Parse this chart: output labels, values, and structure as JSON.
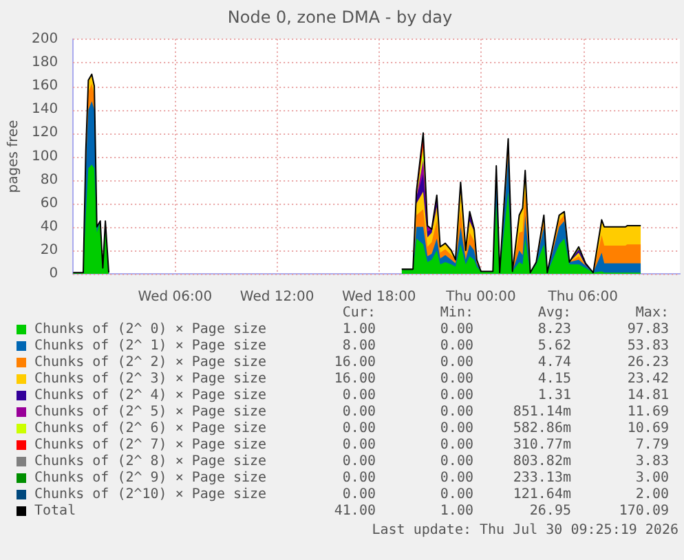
{
  "chart_data": {
    "type": "area",
    "title": "Node 0, zone DMA - by day",
    "ylabel": "pages free",
    "stacked": true,
    "grid": true,
    "legend": "bottom",
    "xlim": [
      "2026-07-29T00:00",
      "2026-07-30T11:42"
    ],
    "xticks": [
      {
        "value": "2026-07-29T06:00",
        "label": "Wed 06:00"
      },
      {
        "value": "2026-07-29T12:00",
        "label": "Wed 12:00"
      },
      {
        "value": "2026-07-29T18:00",
        "label": "Wed 18:00"
      },
      {
        "value": "2026-07-30T00:00",
        "label": "Thu 00:00"
      },
      {
        "value": "2026-07-30T06:00",
        "label": "Thu 06:00"
      }
    ],
    "ylim": [
      0,
      200
    ],
    "yticks": [
      0,
      20,
      40,
      60,
      80,
      100,
      120,
      140,
      160,
      180,
      200
    ],
    "x": [
      "2026-07-29T00:00",
      "2026-07-29T00:36",
      "2026-07-29T00:45",
      "2026-07-29T00:54",
      "2026-07-29T01:06",
      "2026-07-29T01:15",
      "2026-07-29T01:24",
      "2026-07-29T01:36",
      "2026-07-29T01:45",
      "2026-07-29T01:54",
      "2026-07-29T02:06",
      "2026-07-29T10:00",
      "2026-07-29T19:20",
      "2026-07-29T20:00",
      "2026-07-29T20:12",
      "2026-07-29T20:36",
      "2026-07-29T20:51",
      "2026-07-29T21:06",
      "2026-07-29T21:24",
      "2026-07-29T21:36",
      "2026-07-29T21:54",
      "2026-07-29T22:15",
      "2026-07-29T22:30",
      "2026-07-29T22:48",
      "2026-07-29T23:06",
      "2026-07-29T23:20",
      "2026-07-29T23:36",
      "2026-07-29T23:45",
      "2026-07-30T00:00",
      "2026-07-30T00:42",
      "2026-07-30T00:54",
      "2026-07-30T01:06",
      "2026-07-30T01:36",
      "2026-07-30T01:51",
      "2026-07-30T02:15",
      "2026-07-30T02:27",
      "2026-07-30T02:36",
      "2026-07-30T02:54",
      "2026-07-30T03:15",
      "2026-07-30T03:42",
      "2026-07-30T03:54",
      "2026-07-30T04:36",
      "2026-07-30T04:54",
      "2026-07-30T05:12",
      "2026-07-30T05:45",
      "2026-07-30T06:09",
      "2026-07-30T06:36",
      "2026-07-30T07:06",
      "2026-07-30T07:15",
      "2026-07-30T08:30",
      "2026-07-30T08:36",
      "2026-07-30T09:24"
    ],
    "series": [
      {
        "name": "Chunks of (2^ 0) × Page size",
        "color": "#00cc00",
        "values": [
          1,
          1,
          50,
          90,
          93,
          90,
          35,
          45,
          5,
          40,
          1,
          null,
          3,
          3,
          30,
          25,
          10,
          12,
          20,
          8,
          10,
          8,
          6,
          25,
          8,
          15,
          12,
          6,
          2,
          2,
          60,
          1,
          70,
          2,
          10,
          8,
          30,
          1,
          8,
          25,
          1,
          25,
          30,
          8,
          8,
          5,
          1,
          2,
          1,
          1,
          1,
          1
        ]
      },
      {
        "name": "Chunks of (2^ 1) × Page size",
        "color": "#0066b3",
        "values": [
          null,
          0,
          40,
          50,
          54,
          50,
          5,
          0,
          0,
          5,
          0,
          null,
          null,
          0,
          10,
          15,
          5,
          5,
          10,
          5,
          6,
          4,
          3,
          15,
          4,
          10,
          8,
          3,
          0,
          0,
          20,
          0,
          30,
          0,
          10,
          8,
          20,
          0,
          2,
          15,
          0,
          15,
          15,
          2,
          4,
          2,
          0,
          16,
          8,
          8,
          8,
          8
        ]
      },
      {
        "name": "Chunks of (2^ 2) × Page size",
        "color": "#ff8000",
        "values": [
          null,
          0,
          10,
          15,
          15,
          12,
          0,
          null,
          null,
          null,
          null,
          null,
          null,
          0,
          10,
          15,
          8,
          10,
          15,
          5,
          5,
          4,
          3,
          15,
          4,
          10,
          8,
          3,
          0,
          0,
          7,
          0,
          10,
          0,
          15,
          20,
          20,
          0,
          0,
          5,
          0,
          5,
          5,
          0,
          3,
          0,
          0,
          15,
          15,
          15,
          16,
          16
        ]
      },
      {
        "name": "Chunks of (2^ 3) × Page size",
        "color": "#ffcc00",
        "values": [
          null,
          0,
          5,
          10,
          8,
          8,
          0,
          null,
          null,
          null,
          null,
          null,
          null,
          0,
          10,
          15,
          8,
          8,
          12,
          5,
          5,
          4,
          0,
          15,
          4,
          10,
          8,
          0,
          null,
          0,
          5,
          0,
          5,
          0,
          15,
          20,
          18,
          0,
          0,
          5,
          0,
          5,
          3,
          0,
          3,
          0,
          0,
          13,
          16,
          16,
          16,
          16
        ]
      },
      {
        "name": "Chunks of (2^ 4) × Page size",
        "color": "#330099",
        "values": [
          null,
          null,
          null,
          null,
          null,
          null,
          null,
          null,
          null,
          null,
          null,
          null,
          null,
          0,
          5,
          15,
          5,
          3,
          5,
          0,
          null,
          null,
          0,
          5,
          0,
          5,
          0,
          null,
          null,
          null,
          null,
          null,
          null,
          null,
          null,
          null,
          null,
          null,
          null,
          null,
          null,
          null,
          null,
          0,
          3,
          2,
          0,
          null,
          null,
          null,
          null,
          null
        ]
      },
      {
        "name": "Chunks of (2^ 5) × Page size",
        "color": "#990099",
        "values": [
          null,
          null,
          null,
          null,
          null,
          null,
          null,
          null,
          null,
          null,
          null,
          null,
          null,
          null,
          0,
          12,
          5,
          0,
          5,
          0,
          null,
          null,
          null,
          null,
          0,
          3,
          2,
          0,
          null,
          null,
          null,
          null,
          null,
          null,
          null,
          null,
          null,
          null,
          null,
          null,
          null,
          null,
          null,
          null,
          null,
          null,
          null,
          null,
          null,
          null,
          null,
          null
        ]
      },
      {
        "name": "Chunks of (2^ 6) × Page size",
        "color": "#ccff00",
        "values": [
          null,
          null,
          null,
          null,
          null,
          null,
          null,
          null,
          null,
          null,
          null,
          null,
          null,
          null,
          0,
          11,
          0,
          null,
          null,
          null,
          null,
          null,
          null,
          null,
          null,
          null,
          null,
          null,
          null,
          null,
          null,
          null,
          null,
          null,
          null,
          null,
          null,
          null,
          null,
          null,
          null,
          null,
          null,
          0,
          2,
          0,
          null,
          null,
          null,
          null,
          null,
          null
        ]
      },
      {
        "name": "Chunks of (2^ 7) × Page size",
        "color": "#ff0000",
        "values": [
          null,
          null,
          null,
          null,
          null,
          null,
          null,
          null,
          null,
          null,
          null,
          null,
          null,
          null,
          0,
          8,
          0,
          null,
          null,
          null,
          null,
          null,
          null,
          null,
          null,
          null,
          null,
          null,
          null,
          null,
          null,
          null,
          null,
          null,
          null,
          null,
          null,
          null,
          null,
          null,
          null,
          null,
          null,
          null,
          null,
          null,
          null,
          null,
          null,
          null,
          null,
          null
        ]
      },
      {
        "name": "Chunks of (2^ 8) × Page size",
        "color": "#808080",
        "values": [
          null,
          null,
          null,
          null,
          null,
          null,
          null,
          null,
          null,
          null,
          null,
          null,
          null,
          0,
          5,
          4,
          0,
          null,
          null,
          null,
          null,
          null,
          0,
          3,
          0,
          null,
          null,
          null,
          null,
          null,
          null,
          null,
          null,
          null,
          null,
          null,
          null,
          null,
          null,
          null,
          null,
          null,
          null,
          null,
          null,
          null,
          null,
          null,
          null,
          null,
          null,
          null
        ]
      },
      {
        "name": "Chunks of (2^ 9) × Page size",
        "color": "#008f00",
        "values": [
          null,
          null,
          null,
          null,
          null,
          null,
          null,
          null,
          null,
          null,
          null,
          null,
          1,
          1,
          0,
          null,
          null,
          null,
          null,
          null,
          null,
          null,
          null,
          null,
          null,
          null,
          null,
          null,
          null,
          null,
          null,
          null,
          null,
          null,
          null,
          null,
          null,
          null,
          null,
          null,
          null,
          null,
          null,
          null,
          null,
          null,
          null,
          null,
          null,
          null,
          null,
          null
        ]
      },
      {
        "name": "Chunks of (2^10) × Page size",
        "color": "#00487d",
        "values": [
          null,
          null,
          null,
          null,
          null,
          null,
          null,
          null,
          null,
          null,
          null,
          null,
          null,
          null,
          null,
          null,
          null,
          null,
          null,
          null,
          null,
          null,
          null,
          null,
          null,
          null,
          null,
          null,
          null,
          null,
          null,
          null,
          null,
          null,
          null,
          null,
          null,
          null,
          null,
          null,
          null,
          null,
          null,
          null,
          null,
          null,
          null,
          null,
          null,
          null,
          null,
          null
        ]
      },
      {
        "name": "Total",
        "color": "#000000",
        "type": "line",
        "values": [
          1,
          1,
          105,
          165,
          170,
          160,
          40,
          45,
          5,
          45,
          1,
          null,
          4,
          4,
          70,
          120,
          41,
          38,
          67,
          23,
          26,
          20,
          12,
          78,
          20,
          53,
          38,
          12,
          2,
          2,
          92,
          1,
          115,
          2,
          50,
          56,
          88,
          1,
          10,
          50,
          1,
          50,
          53,
          10,
          23,
          9,
          1,
          46,
          40,
          40,
          41,
          41
        ]
      }
    ],
    "annotations": [
      "Cur:",
      "Min:",
      "Avg:",
      "Max:",
      "1.00",
      "0.00",
      "8.23",
      "97.83",
      "8.00",
      "0.00",
      "5.62",
      "53.83",
      "16.00",
      "0.00",
      "4.74",
      "26.23",
      "16.00",
      "0.00",
      "4.15",
      "23.42",
      "0.00",
      "0.00",
      "1.31",
      "14.81",
      "0.00",
      "0.00",
      "851.14m",
      "11.69",
      "0.00",
      "0.00",
      "582.86m",
      "10.69",
      "0.00",
      "0.00",
      "310.77m",
      "7.79",
      "0.00",
      "0.00",
      "803.82m",
      "3.83",
      "0.00",
      "0.00",
      "233.13m",
      "3.00",
      "0.00",
      "0.00",
      "121.64m",
      "2.00",
      "41.00",
      "1.00",
      "26.95",
      "170.09",
      "Last update: Thu Jul 30 09:25:19 2026"
    ]
  }
}
